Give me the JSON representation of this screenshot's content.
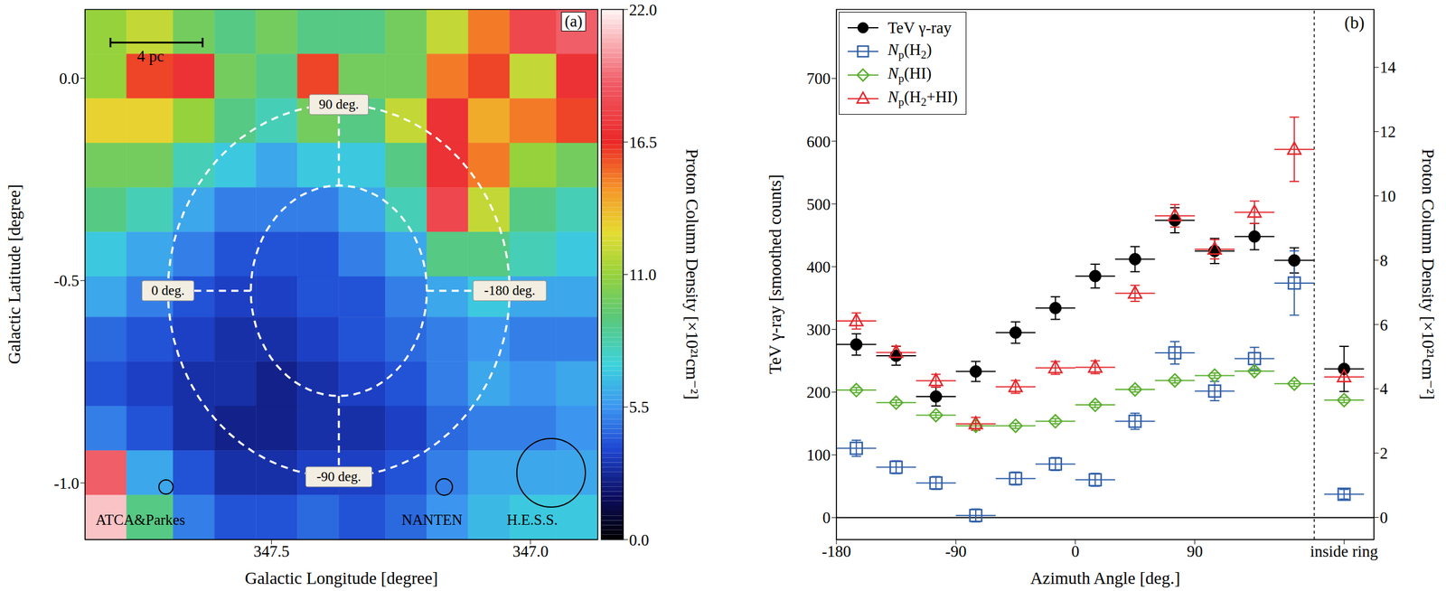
{
  "chart_data": [
    {
      "type": "heatmap",
      "title": "(a)",
      "xlabel": "Galactic Longitude [degree]",
      "ylabel": "Galactic Latitude [degree]",
      "xlim": [
        347.86,
        346.87
      ],
      "xticks": [
        347.5,
        {
          "value": 347,
          "label": "347.0"
        }
      ],
      "ylim": [
        -1.14,
        0.17
      ],
      "yticks": [
        {
          "value": 0,
          "label": "0.0"
        },
        -0.5,
        {
          "value": -1,
          "label": "-1.0"
        }
      ],
      "lon_edges": [
        347.86,
        347.78,
        347.69,
        347.61,
        347.53,
        347.45,
        347.37,
        347.28,
        347.2,
        347.12,
        347.04,
        346.95,
        346.87
      ],
      "lat_edges": [
        0.17,
        0.06,
        -0.05,
        -0.16,
        -0.27,
        -0.38,
        -0.49,
        -0.59,
        -0.7,
        -0.81,
        -0.92,
        -1.03,
        -1.14
      ],
      "cells": [
        [
          11,
          12,
          10,
          9,
          10,
          9,
          9,
          10,
          12,
          15,
          18,
          19
        ],
        [
          11,
          16,
          17,
          10,
          9,
          16,
          10,
          10,
          15,
          16,
          12,
          17
        ],
        [
          13,
          13,
          11,
          9,
          8,
          10,
          9,
          12,
          17,
          14,
          15,
          16
        ],
        [
          10,
          10,
          8,
          7,
          6,
          7,
          7,
          9,
          17,
          15,
          11,
          10
        ],
        [
          9,
          8,
          6,
          5,
          5,
          5,
          6,
          8,
          18,
          12,
          9,
          8
        ],
        [
          7,
          6,
          5,
          4,
          4,
          4,
          5,
          6,
          9,
          9,
          8,
          7
        ],
        [
          6,
          5,
          4,
          3.5,
          3.5,
          4,
          4,
          5,
          6,
          7,
          6,
          6
        ],
        [
          4.5,
          4,
          3.5,
          3,
          3,
          3.5,
          4,
          4.5,
          5,
          5.5,
          5,
          5
        ],
        [
          4,
          3.5,
          3,
          3,
          2.5,
          3,
          3.5,
          4,
          5,
          6,
          5.5,
          6
        ],
        [
          5,
          4,
          3,
          2.5,
          2.5,
          3,
          3,
          3.5,
          4.5,
          5,
          5,
          5.5
        ],
        [
          19,
          6,
          4,
          3,
          3,
          3.5,
          3.5,
          4,
          5,
          6,
          6,
          6
        ],
        [
          21,
          9,
          5,
          4,
          4,
          4.5,
          4,
          4.5,
          5.5,
          6.5,
          7,
          7
        ]
      ],
      "colorbar": {
        "label": "Proton Column Density [×10²¹cm⁻²]",
        "range": [
          0,
          22
        ],
        "ticks": [
          {
            "value": 0,
            "label": "0.0"
          },
          5.5,
          {
            "value": 11,
            "label": "11.0"
          },
          16.5,
          {
            "value": 22,
            "label": "22.0"
          }
        ]
      },
      "rings": {
        "center": [
          347.37,
          -0.525
        ],
        "outer": [
          0.33,
          0.46
        ],
        "inner": [
          0.17,
          0.26
        ]
      },
      "ring_labels": [
        {
          "angle": 90,
          "label": "90 deg."
        },
        {
          "angle": 0,
          "label": "0 deg."
        },
        {
          "angle": -180,
          "label": "-180 deg."
        },
        {
          "angle": -90,
          "label": "-90 deg."
        }
      ],
      "annotations": [
        "4 pc",
        "ATCA&Parkes",
        "NANTEN",
        "H.E.S.S."
      ]
    },
    {
      "type": "scatter",
      "title": "(b)",
      "xlabel": "Azimuth Angle [deg.]",
      "ylabel": "TeV γ-ray [smoothed counts]",
      "y2label": "Proton Column Density [×10²¹cm⁻²]",
      "x": [
        -165,
        -135,
        -105,
        -75,
        -45,
        -15,
        15,
        45,
        75,
        105,
        135,
        165,
        202.5
      ],
      "xlim": [
        -180,
        225
      ],
      "xticks": [
        -180,
        -90,
        0,
        90,
        {
          "value": 202.5,
          "label": "inside ring"
        }
      ],
      "ylim": [
        -35,
        810
      ],
      "yticks": [
        0,
        100,
        200,
        300,
        400,
        500,
        600,
        700
      ],
      "y2lim": [
        -0.69,
        15.8
      ],
      "y2ticks": [
        0,
        2,
        4,
        6,
        8,
        10,
        12,
        14
      ],
      "divider": 180,
      "x_error": 15,
      "legend": "upper left",
      "series": [
        {
          "name": "TeV γ-ray",
          "color": "#000000",
          "marker": "circle",
          "values": [
            276,
            258,
            193,
            233,
            295,
            334,
            385,
            412,
            474,
            425,
            448,
            410,
            237
          ],
          "errors": [
            17,
            15,
            15,
            16,
            17,
            18,
            19,
            20,
            20,
            20,
            21,
            20,
            36
          ]
        },
        {
          "name": "Np(H2)",
          "color": "#2e5ea8",
          "marker": "open_square",
          "axis": "y2",
          "values": [
            2.15,
            1.56,
            1.07,
            0.06,
            1.21,
            1.66,
            1.17,
            2.99,
            5.12,
            3.93,
            4.94,
            7.29,
            0.72
          ],
          "errors": [
            0.25,
            0.2,
            0.2,
            0.2,
            0.2,
            0.2,
            0.2,
            0.25,
            0.35,
            0.3,
            0.35,
            1.0,
            0.15
          ]
        },
        {
          "name": "Np(HI)",
          "color": "#5aae2e",
          "marker": "open_diamond",
          "axis": "y2",
          "values": [
            3.96,
            3.57,
            3.18,
            2.85,
            2.85,
            2.99,
            3.5,
            3.98,
            4.26,
            4.41,
            4.55,
            4.16,
            3.65
          ],
          "errors": [
            0.08,
            0.08,
            0.08,
            0.08,
            0.08,
            0.08,
            0.08,
            0.08,
            0.08,
            0.08,
            0.08,
            0.08,
            0.08
          ]
        },
        {
          "name": "Np(H2+HI)",
          "color": "#e3262b",
          "marker": "open_triangle",
          "axis": "y2",
          "values": [
            6.11,
            5.13,
            4.25,
            2.91,
            4.06,
            4.65,
            4.67,
            6.97,
            9.38,
            8.34,
            9.49,
            11.45,
            4.37
          ],
          "errors": [
            0.25,
            0.2,
            0.2,
            0.2,
            0.2,
            0.2,
            0.2,
            0.25,
            0.35,
            0.3,
            0.35,
            1.0,
            0.15
          ]
        }
      ]
    }
  ]
}
